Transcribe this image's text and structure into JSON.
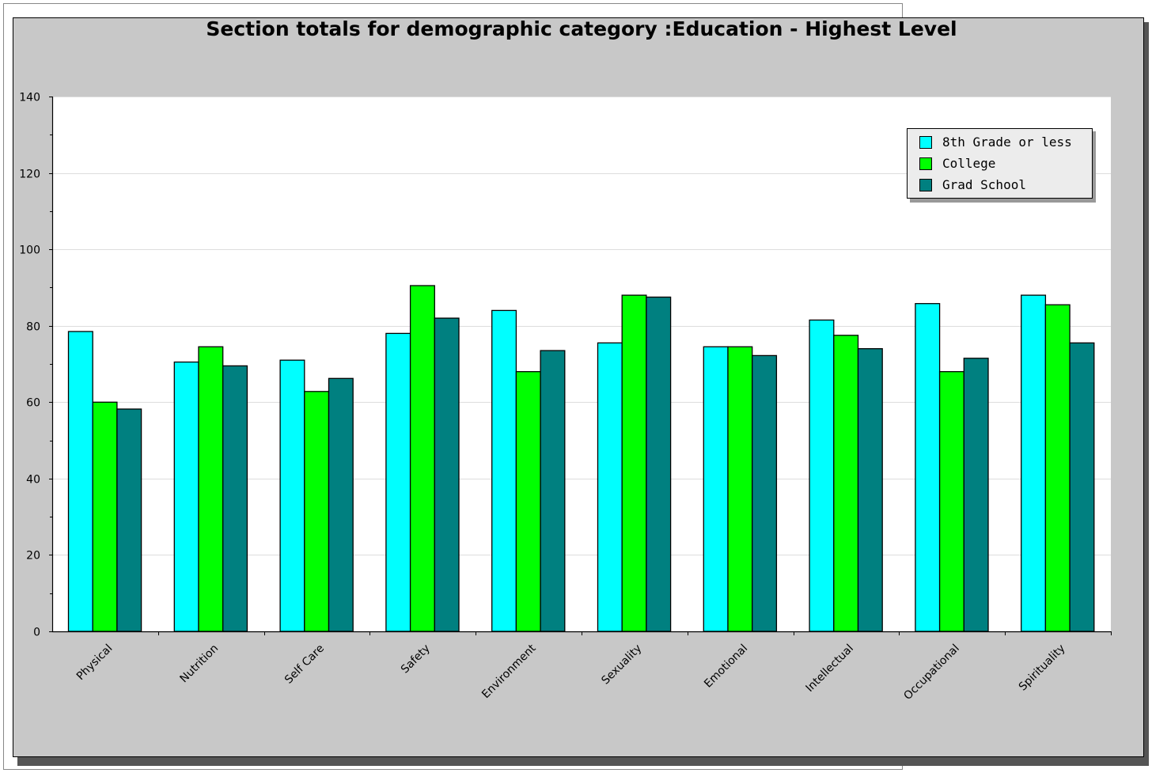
{
  "chart_data": {
    "type": "bar",
    "title": "Section totals for demographic category :Education - Highest Level",
    "xlabel": "",
    "ylabel": "",
    "ylim": [
      0,
      140
    ],
    "yticks": [
      0,
      20,
      40,
      60,
      80,
      100,
      120,
      140
    ],
    "grid": true,
    "legend_position": "top-right",
    "categories": [
      "Physical",
      "Nutrition",
      "Self Care",
      "Safety",
      "Environment",
      "Sexuality",
      "Emotional",
      "Intellectual",
      "Occupational",
      "Spirituality"
    ],
    "series": [
      {
        "name": "8th Grade or less",
        "color": "#00ffff",
        "values": [
          78.5,
          70.5,
          71,
          78,
          84,
          75.5,
          74.5,
          81.5,
          85.8,
          88
        ]
      },
      {
        "name": "College",
        "color": "#00ff00",
        "values": [
          60,
          74.5,
          62.8,
          90.5,
          68,
          88,
          74.5,
          77.5,
          68,
          85.5
        ]
      },
      {
        "name": "Grad School",
        "color": "#008080",
        "values": [
          58.2,
          69.5,
          66.2,
          82,
          73.5,
          87.5,
          72.2,
          74,
          71.5,
          75.5
        ]
      }
    ]
  }
}
